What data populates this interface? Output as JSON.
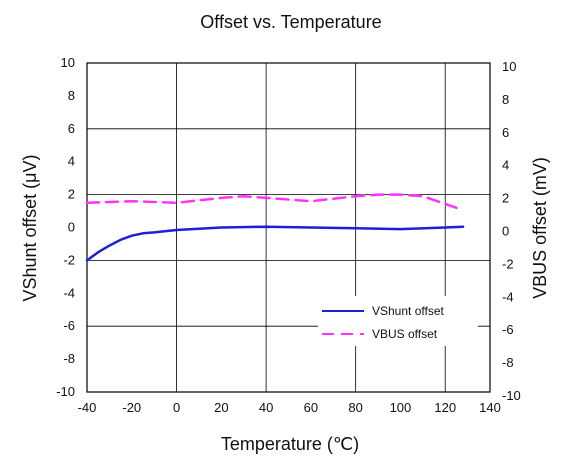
{
  "chart_data": {
    "type": "line",
    "title": "Offset vs. Temperature",
    "xlabel": "Temperature (℃)",
    "ylabel": "VShunt offset (μV)",
    "y2label": "VBUS offset (mV)",
    "xlim": [
      -40,
      140
    ],
    "ylim": [
      -10,
      10
    ],
    "y2lim": [
      -10,
      10
    ],
    "xticks": [
      -40,
      -20,
      0,
      20,
      40,
      60,
      80,
      100,
      120,
      140
    ],
    "yticks": [
      -10,
      -8,
      -6,
      -4,
      -2,
      0,
      2,
      4,
      6,
      8,
      10
    ],
    "y2ticks": [
      -10,
      -8,
      -6,
      -4,
      -2,
      0,
      2,
      4,
      6,
      8,
      10
    ],
    "grid": true,
    "legend_position": "lower-right",
    "series": [
      {
        "name": "VShunt offset",
        "axis": "left",
        "color": "#1f1fd6",
        "style": "solid",
        "x": [
          -40,
          -35,
          -30,
          -25,
          -20,
          -15,
          -10,
          0,
          20,
          40,
          60,
          80,
          100,
          120,
          128
        ],
        "y": [
          -2.0,
          -1.5,
          -1.1,
          -0.75,
          -0.5,
          -0.35,
          -0.3,
          -0.15,
          0.0,
          0.05,
          0.0,
          -0.05,
          -0.1,
          0.0,
          0.05
        ]
      },
      {
        "name": "VBUS offset",
        "axis": "right",
        "color": "#ff33ff",
        "style": "dashed",
        "x": [
          -40,
          -20,
          0,
          20,
          30,
          40,
          60,
          80,
          90,
          100,
          110,
          125
        ],
        "y": [
          1.5,
          1.6,
          1.5,
          1.8,
          1.9,
          1.8,
          1.6,
          1.9,
          2.0,
          2.0,
          1.9,
          1.2
        ]
      }
    ]
  }
}
